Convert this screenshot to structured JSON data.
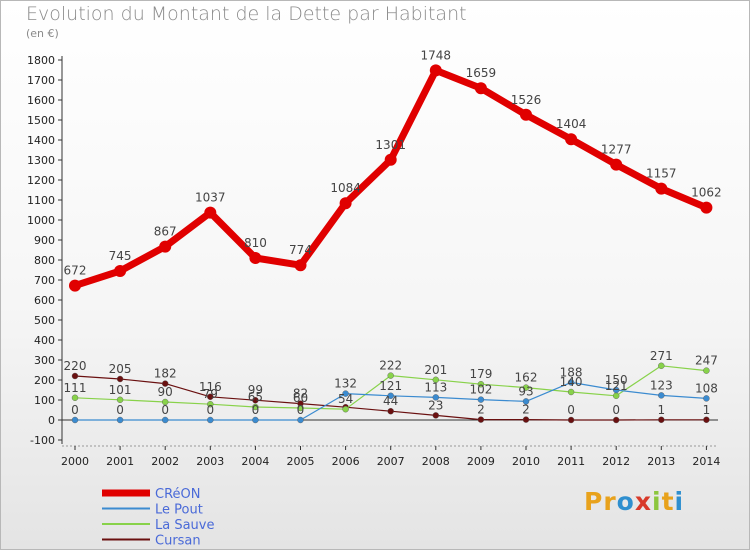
{
  "title": "Evolution du Montant de la Dette par Habitant",
  "unit": "(en €)",
  "logo": {
    "text": "Proxiti",
    "letters": [
      "P",
      "r",
      "o",
      "x",
      "i",
      "t",
      "i"
    ],
    "colors": [
      "#e8a21c",
      "#e8a21c",
      "#2f8fcf",
      "#d83a2a",
      "#8cc63e",
      "#e8a21c",
      "#2f8fcf"
    ]
  },
  "chart_data": {
    "type": "line",
    "x": [
      "2000",
      "2001",
      "2002",
      "2003",
      "2004",
      "2005",
      "2006",
      "2007",
      "2008",
      "2009",
      "2010",
      "2011",
      "2012",
      "2013",
      "2014"
    ],
    "ylim": [
      -100,
      1800
    ],
    "yticks": [
      "-100",
      "0",
      "100",
      "200",
      "300",
      "400",
      "500",
      "600",
      "700",
      "800",
      "900",
      "1000",
      "1100",
      "1200",
      "1300",
      "1400",
      "1500",
      "1600",
      "1700",
      "1800"
    ],
    "grid": false,
    "legend_position": "bottom-left",
    "series": [
      {
        "name": "CRéON",
        "color": "#e00000",
        "values": [
          672,
          745,
          867,
          1037,
          810,
          774,
          1084,
          1301,
          1748,
          1659,
          1526,
          1404,
          1277,
          1157,
          1062
        ],
        "labels": [
          "672",
          "745",
          "867",
          "1037",
          "810",
          "774",
          "1084",
          "1301",
          "1748",
          "1659",
          "1526",
          "1404",
          "1277",
          "1157",
          "1062"
        ]
      },
      {
        "name": "Le Pout",
        "color": "#3b8bd0",
        "values": [
          0,
          0,
          0,
          0,
          0,
          0,
          132,
          121,
          113,
          102,
          93,
          188,
          150,
          123,
          108
        ],
        "labels": [
          "0",
          "0",
          "0",
          "0",
          "0",
          "0",
          "132",
          "121",
          "113",
          "102",
          "93",
          "188",
          "150",
          "123",
          "108"
        ]
      },
      {
        "name": "La Sauve",
        "color": "#88d24a",
        "values": [
          111,
          101,
          90,
          79,
          65,
          60,
          54,
          222,
          201,
          179,
          162,
          140,
          121,
          271,
          247
        ],
        "labels": [
          "111",
          "101",
          "90",
          "79",
          "65",
          "60",
          "54",
          "222",
          "201",
          "179",
          "162",
          "140",
          "121",
          "271",
          "247"
        ]
      },
      {
        "name": "Cursan",
        "color": "#6a1010",
        "values": [
          220,
          205,
          182,
          116,
          99,
          82,
          64,
          44,
          23,
          2,
          2,
          0,
          0,
          1,
          1
        ],
        "labels": [
          "220",
          "205",
          "182",
          "116",
          "99",
          "82",
          "",
          "44",
          "23",
          "2",
          "2",
          "0",
          "0",
          "1",
          "1"
        ]
      }
    ]
  }
}
